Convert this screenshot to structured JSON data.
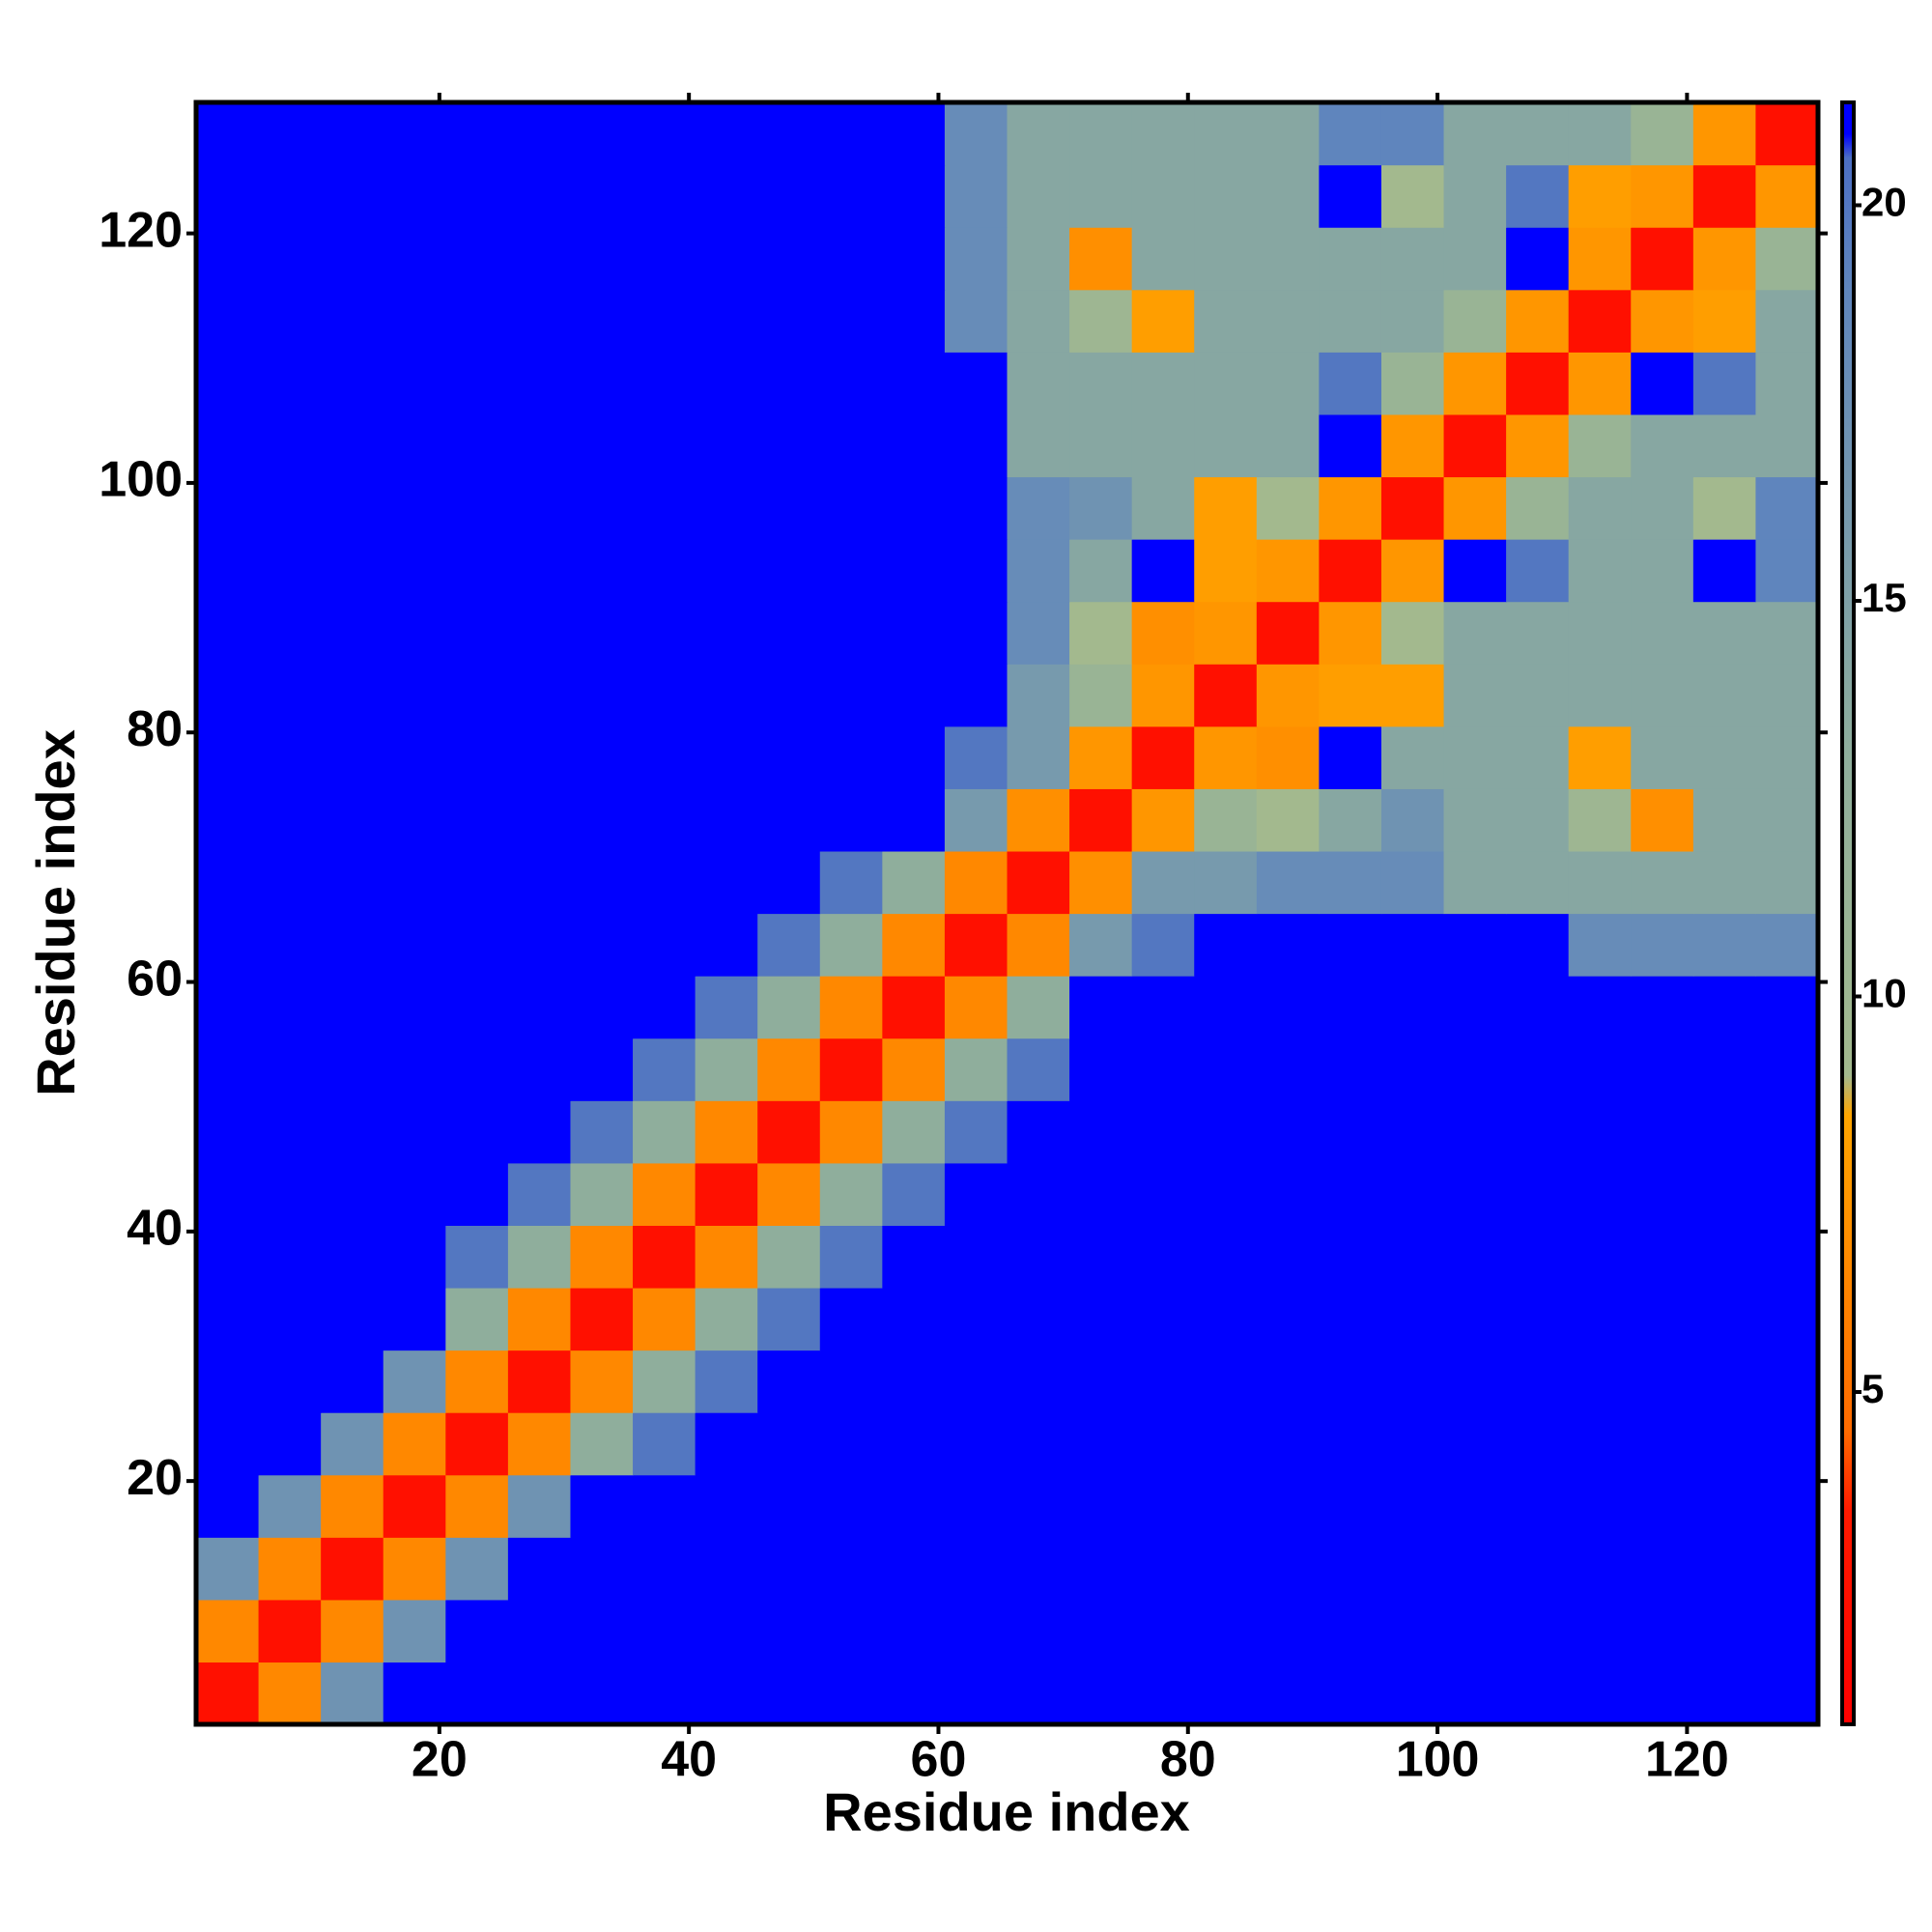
{
  "chart_data": {
    "type": "heatmap",
    "xlabel": "Residue index",
    "ylabel": "Residue index",
    "xbins": [
      0.5,
      5.5,
      10.5,
      15.5,
      20.5,
      25.5,
      30.5,
      35.5,
      40.5,
      45.5,
      50.5,
      55.5,
      60.5,
      65.5,
      70.5,
      75.5,
      80.5,
      85.5,
      90.5,
      95.5,
      100.5,
      105.5,
      110.5,
      115.5,
      120.5,
      125.5,
      130.5
    ],
    "ybins": [
      0.5,
      5.5,
      10.5,
      15.5,
      20.5,
      25.5,
      30.5,
      35.5,
      40.5,
      45.5,
      50.5,
      55.5,
      60.5,
      65.5,
      70.5,
      75.5,
      80.5,
      85.5,
      90.5,
      95.5,
      100.5,
      105.5,
      110.5,
      115.5,
      120.5,
      125.5,
      130.5
    ],
    "values": [
      [
        2.5,
        6.5,
        17,
        22,
        22,
        22,
        22,
        22,
        22,
        22,
        22,
        22,
        22,
        22,
        22,
        22,
        22,
        22,
        22,
        22,
        22,
        22,
        22,
        22,
        22,
        22
      ],
      [
        6.5,
        2.5,
        6.5,
        17,
        22,
        22,
        22,
        22,
        22,
        22,
        22,
        22,
        22,
        22,
        22,
        22,
        22,
        22,
        22,
        22,
        22,
        22,
        22,
        22,
        22,
        22
      ],
      [
        17,
        6.5,
        2.5,
        6.5,
        17,
        22,
        22,
        22,
        22,
        22,
        22,
        22,
        22,
        22,
        22,
        22,
        22,
        22,
        22,
        22,
        22,
        22,
        22,
        22,
        22,
        22
      ],
      [
        22,
        17,
        6.5,
        2.5,
        6.5,
        17,
        22,
        22,
        22,
        22,
        22,
        22,
        22,
        22,
        22,
        22,
        22,
        22,
        22,
        22,
        22,
        22,
        22,
        22,
        22,
        22
      ],
      [
        22,
        22,
        17,
        6.5,
        2.5,
        6.5,
        13,
        20,
        22,
        22,
        22,
        22,
        22,
        22,
        22,
        22,
        22,
        22,
        22,
        22,
        22,
        22,
        22,
        22,
        22,
        22
      ],
      [
        22,
        22,
        22,
        17,
        6.5,
        2.5,
        6.5,
        13,
        20,
        22,
        22,
        22,
        22,
        22,
        22,
        22,
        22,
        22,
        22,
        22,
        22,
        22,
        22,
        22,
        22,
        22
      ],
      [
        22,
        22,
        22,
        22,
        13,
        6.5,
        2.5,
        6.5,
        13,
        20,
        22,
        22,
        22,
        22,
        22,
        22,
        22,
        22,
        22,
        22,
        22,
        22,
        22,
        22,
        22,
        22
      ],
      [
        22,
        22,
        22,
        22,
        20,
        13,
        6.5,
        2.5,
        6.5,
        13,
        20,
        22,
        22,
        22,
        22,
        22,
        22,
        22,
        22,
        22,
        22,
        22,
        22,
        22,
        22,
        22
      ],
      [
        22,
        22,
        22,
        22,
        22,
        20,
        13,
        6.5,
        2.5,
        6.5,
        13,
        20,
        22,
        22,
        22,
        22,
        22,
        22,
        22,
        22,
        22,
        22,
        22,
        22,
        22,
        22
      ],
      [
        22,
        22,
        22,
        22,
        22,
        22,
        20,
        13,
        6.5,
        2.5,
        6.5,
        13,
        20,
        22,
        22,
        22,
        22,
        22,
        22,
        22,
        22,
        22,
        22,
        22,
        22,
        22
      ],
      [
        22,
        22,
        22,
        22,
        22,
        22,
        22,
        20,
        13,
        6.5,
        2.5,
        6.5,
        13,
        20,
        22,
        22,
        22,
        22,
        22,
        22,
        22,
        22,
        22,
        22,
        22,
        22
      ],
      [
        22,
        22,
        22,
        22,
        22,
        22,
        22,
        22,
        20,
        13,
        6.5,
        2.5,
        6.5,
        13,
        22,
        22,
        22,
        22,
        22,
        22,
        22,
        22,
        22,
        22,
        22,
        22
      ],
      [
        22,
        22,
        22,
        22,
        22,
        22,
        22,
        22,
        22,
        20,
        13,
        6.5,
        2.5,
        6.5,
        16,
        20,
        22,
        22,
        22,
        22,
        22,
        22,
        18,
        18,
        18,
        18
      ],
      [
        22,
        22,
        22,
        22,
        22,
        22,
        22,
        22,
        22,
        22,
        20,
        13,
        6.5,
        2.5,
        7,
        16,
        16,
        18,
        18,
        18,
        14,
        14,
        14,
        14,
        14,
        14
      ],
      [
        22,
        22,
        22,
        22,
        22,
        22,
        22,
        22,
        22,
        22,
        22,
        22,
        16,
        7,
        2.5,
        7.5,
        11,
        9,
        14,
        17,
        14,
        14,
        10,
        7,
        14,
        14
      ],
      [
        22,
        22,
        22,
        22,
        22,
        22,
        22,
        22,
        22,
        22,
        22,
        22,
        20,
        16,
        7.5,
        2.5,
        7.5,
        7,
        21,
        14,
        14,
        14,
        8,
        14,
        14,
        14
      ],
      [
        22,
        22,
        22,
        22,
        22,
        22,
        22,
        22,
        22,
        22,
        22,
        22,
        22,
        16,
        11,
        7.5,
        2.5,
        7.5,
        8,
        8,
        14,
        14,
        14,
        14,
        14,
        14
      ],
      [
        22,
        22,
        22,
        22,
        22,
        22,
        22,
        22,
        22,
        22,
        22,
        22,
        22,
        18,
        9,
        7,
        7.5,
        2.5,
        7.5,
        9,
        14,
        14,
        14,
        14,
        14,
        14
      ],
      [
        22,
        22,
        22,
        22,
        22,
        22,
        22,
        22,
        22,
        22,
        22,
        22,
        22,
        18,
        14,
        21,
        8,
        7.5,
        2.5,
        7.5,
        21,
        20,
        14,
        14,
        21,
        19
      ],
      [
        22,
        22,
        22,
        22,
        22,
        22,
        22,
        22,
        22,
        22,
        22,
        22,
        22,
        18,
        17,
        14,
        8,
        9,
        7.5,
        2.5,
        7.5,
        11,
        14,
        14,
        9,
        19
      ],
      [
        22,
        22,
        22,
        22,
        22,
        22,
        22,
        22,
        22,
        22,
        22,
        22,
        22,
        14,
        14,
        14,
        14,
        14,
        21,
        7.5,
        2.5,
        7.5,
        11,
        14,
        14,
        14
      ],
      [
        22,
        22,
        22,
        22,
        22,
        22,
        22,
        22,
        22,
        22,
        22,
        22,
        22,
        14,
        14,
        14,
        14,
        14,
        20,
        11,
        7.5,
        2.5,
        7.5,
        21,
        20,
        14
      ],
      [
        22,
        22,
        22,
        22,
        22,
        22,
        22,
        22,
        22,
        22,
        22,
        22,
        18,
        14,
        10,
        8,
        14,
        14,
        14,
        14,
        11,
        7.5,
        2.5,
        7.5,
        8,
        14
      ],
      [
        22,
        22,
        22,
        22,
        22,
        22,
        22,
        22,
        22,
        22,
        22,
        22,
        18,
        14,
        7,
        14,
        14,
        14,
        14,
        14,
        14,
        21,
        7.5,
        2.5,
        7.5,
        11
      ],
      [
        22,
        22,
        22,
        22,
        22,
        22,
        22,
        22,
        22,
        22,
        22,
        22,
        18,
        14,
        14,
        14,
        14,
        14,
        21,
        9,
        14,
        20,
        8,
        7.5,
        2.5,
        7.5
      ],
      [
        22,
        22,
        22,
        22,
        22,
        22,
        22,
        22,
        22,
        22,
        22,
        22,
        18,
        14,
        14,
        14,
        14,
        14,
        19,
        19,
        14,
        14,
        14,
        11,
        7.5,
        2.5
      ]
    ],
    "xlim": [
      0.5,
      130.5
    ],
    "ylim": [
      0.5,
      130.5
    ],
    "xticks": [
      20,
      40,
      60,
      80,
      100,
      120
    ],
    "yticks": [
      20,
      40,
      60,
      80,
      100,
      120
    ],
    "colorbar": {
      "lim": [
        0.8,
        21.3
      ],
      "ticks": [
        5,
        10,
        15,
        20
      ]
    },
    "colorscale": [
      [
        0.8,
        "#ff0000"
      ],
      [
        3.5,
        "#ff1a00"
      ],
      [
        4.5,
        "#ff6a00"
      ],
      [
        8.5,
        "#ffa500"
      ],
      [
        9,
        "#a3b98e"
      ],
      [
        13,
        "#8fae9c"
      ],
      [
        19,
        "#5f85bd"
      ],
      [
        20.6,
        "#4c6fc4"
      ],
      [
        20.9,
        "#0000ff"
      ]
    ]
  }
}
